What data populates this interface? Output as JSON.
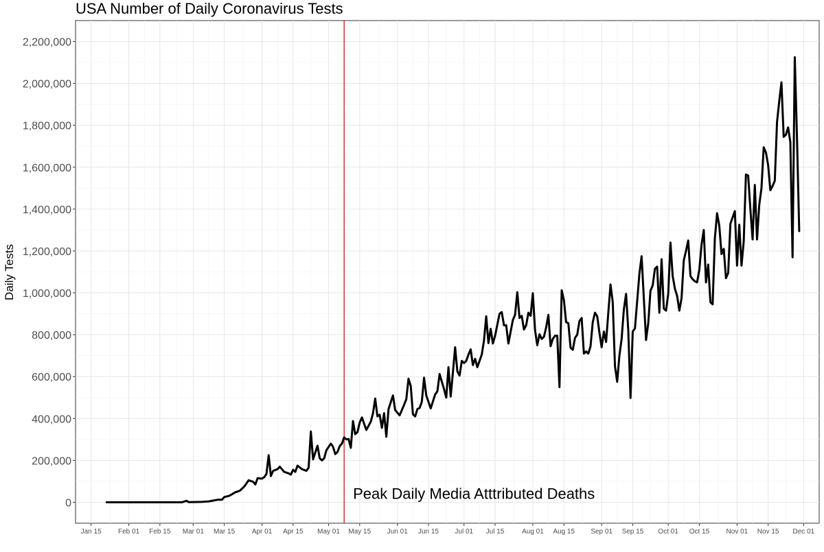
{
  "chart_data": {
    "type": "line",
    "title": "USA Number of Daily Coronavirus Tests",
    "xlabel": "",
    "ylabel": "Daily Tests",
    "xlim": [
      "2020-01-08",
      "2020-12-08"
    ],
    "ylim": [
      -100000,
      2300000
    ],
    "y_ticks": [
      0,
      200000,
      400000,
      600000,
      800000,
      1000000,
      1200000,
      1400000,
      1600000,
      1800000,
      2000000,
      2200000
    ],
    "y_tick_labels": [
      "0",
      "200,000",
      "400,000",
      "600,000",
      "800,000",
      "1,000,000",
      "1,200,000",
      "1,400,000",
      "1,600,000",
      "1,800,000",
      "2,000,000",
      "2,200,000"
    ],
    "x_ticks": [
      "2020-01-15",
      "2020-02-01",
      "2020-02-15",
      "2020-03-01",
      "2020-03-15",
      "2020-04-01",
      "2020-04-15",
      "2020-05-01",
      "2020-05-15",
      "2020-06-01",
      "2020-06-15",
      "2020-07-01",
      "2020-07-15",
      "2020-08-01",
      "2020-08-15",
      "2020-09-01",
      "2020-09-15",
      "2020-10-01",
      "2020-10-15",
      "2020-11-01",
      "2020-11-15",
      "2020-12-01"
    ],
    "x_tick_labels": [
      "Jan 15",
      "Feb 01",
      "Feb 15",
      "Mar 01",
      "Mar 15",
      "Apr 01",
      "Apr 15",
      "May 01",
      "May 15",
      "Jun 01",
      "Jun 15",
      "Jul 01",
      "Jul 15",
      "Aug 01",
      "Aug 15",
      "Sep 01",
      "Sep 15",
      "Oct 01",
      "Oct 15",
      "Nov 01",
      "Nov 15",
      "Dec 01"
    ],
    "grid": true,
    "series": [
      {
        "color": "#000000",
        "points": [
          [
            "2020-01-22",
            0
          ],
          [
            "2020-02-01",
            0
          ],
          [
            "2020-02-15",
            0
          ],
          [
            "2020-02-25",
            0
          ],
          [
            "2020-02-27",
            7000
          ],
          [
            "2020-02-28",
            500
          ],
          [
            "2020-03-02",
            1000
          ],
          [
            "2020-03-05",
            2000
          ],
          [
            "2020-03-08",
            4000
          ],
          [
            "2020-03-10",
            8000
          ],
          [
            "2020-03-12",
            12000
          ],
          [
            "2020-03-14",
            12000
          ],
          [
            "2020-03-15",
            25000
          ],
          [
            "2020-03-17",
            30000
          ],
          [
            "2020-03-18",
            35000
          ],
          [
            "2020-03-20",
            48000
          ],
          [
            "2020-03-22",
            55000
          ],
          [
            "2020-03-24",
            75000
          ],
          [
            "2020-03-26",
            105000
          ],
          [
            "2020-03-28",
            98000
          ],
          [
            "2020-03-29",
            85000
          ],
          [
            "2020-03-30",
            115000
          ],
          [
            "2020-04-01",
            113000
          ],
          [
            "2020-04-02",
            120000
          ],
          [
            "2020-04-03",
            135000
          ],
          [
            "2020-04-04",
            225000
          ],
          [
            "2020-04-05",
            125000
          ],
          [
            "2020-04-06",
            150000
          ],
          [
            "2020-04-08",
            158000
          ],
          [
            "2020-04-09",
            170000
          ],
          [
            "2020-04-11",
            145000
          ],
          [
            "2020-04-13",
            138000
          ],
          [
            "2020-04-14",
            132000
          ],
          [
            "2020-04-15",
            155000
          ],
          [
            "2020-04-16",
            145000
          ],
          [
            "2020-04-17",
            175000
          ],
          [
            "2020-04-19",
            158000
          ],
          [
            "2020-04-21",
            150000
          ],
          [
            "2020-04-22",
            165000
          ],
          [
            "2020-04-23",
            338000
          ],
          [
            "2020-04-24",
            205000
          ],
          [
            "2020-04-26",
            270000
          ],
          [
            "2020-04-27",
            210000
          ],
          [
            "2020-04-28",
            200000
          ],
          [
            "2020-04-29",
            210000
          ],
          [
            "2020-04-30",
            248000
          ],
          [
            "2020-05-02",
            280000
          ],
          [
            "2020-05-03",
            265000
          ],
          [
            "2020-05-04",
            230000
          ],
          [
            "2020-05-05",
            240000
          ],
          [
            "2020-05-06",
            268000
          ],
          [
            "2020-05-07",
            280000
          ],
          [
            "2020-05-08",
            310000
          ],
          [
            "2020-05-09",
            300000
          ],
          [
            "2020-05-10",
            302000
          ],
          [
            "2020-05-11",
            260000
          ],
          [
            "2020-05-12",
            388000
          ],
          [
            "2020-05-13",
            325000
          ],
          [
            "2020-05-14",
            335000
          ],
          [
            "2020-05-15",
            380000
          ],
          [
            "2020-05-16",
            405000
          ],
          [
            "2020-05-18",
            345000
          ],
          [
            "2020-05-20",
            385000
          ],
          [
            "2020-05-21",
            425000
          ],
          [
            "2020-05-22",
            495000
          ],
          [
            "2020-05-23",
            410000
          ],
          [
            "2020-05-24",
            418000
          ],
          [
            "2020-05-25",
            355000
          ],
          [
            "2020-05-26",
            425000
          ],
          [
            "2020-05-27",
            313000
          ],
          [
            "2020-05-28",
            445000
          ],
          [
            "2020-05-30",
            510000
          ],
          [
            "2020-05-31",
            440000
          ],
          [
            "2020-06-02",
            415000
          ],
          [
            "2020-06-04",
            465000
          ],
          [
            "2020-06-05",
            492000
          ],
          [
            "2020-06-06",
            590000
          ],
          [
            "2020-06-07",
            555000
          ],
          [
            "2020-06-08",
            420000
          ],
          [
            "2020-06-09",
            410000
          ],
          [
            "2020-06-10",
            445000
          ],
          [
            "2020-06-11",
            450000
          ],
          [
            "2020-06-12",
            480000
          ],
          [
            "2020-06-13",
            595000
          ],
          [
            "2020-06-14",
            510000
          ],
          [
            "2020-06-16",
            448000
          ],
          [
            "2020-06-18",
            515000
          ],
          [
            "2020-06-19",
            530000
          ],
          [
            "2020-06-20",
            612000
          ],
          [
            "2020-06-22",
            540000
          ],
          [
            "2020-06-23",
            500000
          ],
          [
            "2020-06-24",
            645000
          ],
          [
            "2020-06-25",
            505000
          ],
          [
            "2020-06-26",
            620000
          ],
          [
            "2020-06-27",
            740000
          ],
          [
            "2020-06-28",
            625000
          ],
          [
            "2020-06-29",
            605000
          ],
          [
            "2020-06-30",
            675000
          ],
          [
            "2020-07-01",
            665000
          ],
          [
            "2020-07-02",
            675000
          ],
          [
            "2020-07-03",
            705000
          ],
          [
            "2020-07-04",
            730000
          ],
          [
            "2020-07-05",
            655000
          ],
          [
            "2020-07-06",
            685000
          ],
          [
            "2020-07-07",
            645000
          ],
          [
            "2020-07-08",
            675000
          ],
          [
            "2020-07-09",
            705000
          ],
          [
            "2020-07-10",
            772000
          ],
          [
            "2020-07-11",
            888000
          ],
          [
            "2020-07-12",
            760000
          ],
          [
            "2020-07-13",
            828000
          ],
          [
            "2020-07-14",
            758000
          ],
          [
            "2020-07-15",
            795000
          ],
          [
            "2020-07-17",
            900000
          ],
          [
            "2020-07-18",
            908000
          ],
          [
            "2020-07-19",
            845000
          ],
          [
            "2020-07-20",
            845000
          ],
          [
            "2020-07-21",
            758000
          ],
          [
            "2020-07-23",
            870000
          ],
          [
            "2020-07-24",
            895000
          ],
          [
            "2020-07-25",
            1003000
          ],
          [
            "2020-07-26",
            880000
          ],
          [
            "2020-07-27",
            890000
          ],
          [
            "2020-07-28",
            825000
          ],
          [
            "2020-07-29",
            845000
          ],
          [
            "2020-07-30",
            905000
          ],
          [
            "2020-07-31",
            890000
          ],
          [
            "2020-08-01",
            998000
          ],
          [
            "2020-08-02",
            822000
          ],
          [
            "2020-08-03",
            750000
          ],
          [
            "2020-08-04",
            802000
          ],
          [
            "2020-08-05",
            780000
          ],
          [
            "2020-08-06",
            790000
          ],
          [
            "2020-08-07",
            835000
          ],
          [
            "2020-08-08",
            895000
          ],
          [
            "2020-08-09",
            745000
          ],
          [
            "2020-08-10",
            780000
          ],
          [
            "2020-08-11",
            795000
          ],
          [
            "2020-08-12",
            795000
          ],
          [
            "2020-08-13",
            550000
          ],
          [
            "2020-08-14",
            1012000
          ],
          [
            "2020-08-15",
            965000
          ],
          [
            "2020-08-16",
            860000
          ],
          [
            "2020-08-17",
            855000
          ],
          [
            "2020-08-18",
            738000
          ],
          [
            "2020-08-19",
            728000
          ],
          [
            "2020-08-20",
            785000
          ],
          [
            "2020-08-21",
            800000
          ],
          [
            "2020-08-22",
            865000
          ],
          [
            "2020-08-23",
            880000
          ],
          [
            "2020-08-24",
            710000
          ],
          [
            "2020-08-25",
            720000
          ],
          [
            "2020-08-26",
            710000
          ],
          [
            "2020-08-27",
            745000
          ],
          [
            "2020-08-28",
            860000
          ],
          [
            "2020-08-29",
            905000
          ],
          [
            "2020-08-30",
            888000
          ],
          [
            "2020-08-31",
            810000
          ],
          [
            "2020-09-01",
            740000
          ],
          [
            "2020-09-02",
            815000
          ],
          [
            "2020-09-03",
            765000
          ],
          [
            "2020-09-04",
            905000
          ],
          [
            "2020-09-05",
            1040000
          ],
          [
            "2020-09-06",
            955000
          ],
          [
            "2020-09-07",
            650000
          ],
          [
            "2020-09-08",
            575000
          ],
          [
            "2020-09-09",
            700000
          ],
          [
            "2020-09-10",
            780000
          ],
          [
            "2020-09-11",
            920000
          ],
          [
            "2020-09-12",
            995000
          ],
          [
            "2020-09-13",
            820000
          ],
          [
            "2020-09-14",
            498000
          ],
          [
            "2020-09-15",
            815000
          ],
          [
            "2020-09-16",
            830000
          ],
          [
            "2020-09-17",
            960000
          ],
          [
            "2020-09-18",
            1090000
          ],
          [
            "2020-09-19",
            1175000
          ],
          [
            "2020-09-20",
            975000
          ],
          [
            "2020-09-21",
            775000
          ],
          [
            "2020-09-22",
            855000
          ],
          [
            "2020-09-23",
            1010000
          ],
          [
            "2020-09-24",
            1035000
          ],
          [
            "2020-09-25",
            1115000
          ],
          [
            "2020-09-26",
            1125000
          ],
          [
            "2020-09-27",
            905000
          ],
          [
            "2020-09-28",
            1160000
          ],
          [
            "2020-09-29",
            925000
          ],
          [
            "2020-09-30",
            915000
          ],
          [
            "2020-10-01",
            995000
          ],
          [
            "2020-10-02",
            1240000
          ],
          [
            "2020-10-03",
            1080000
          ],
          [
            "2020-10-04",
            1020000
          ],
          [
            "2020-10-05",
            985000
          ],
          [
            "2020-10-06",
            915000
          ],
          [
            "2020-10-07",
            975000
          ],
          [
            "2020-10-08",
            1155000
          ],
          [
            "2020-10-09",
            1200000
          ],
          [
            "2020-10-10",
            1250000
          ],
          [
            "2020-10-11",
            1080000
          ],
          [
            "2020-10-12",
            1065000
          ],
          [
            "2020-10-13",
            1055000
          ],
          [
            "2020-10-14",
            1050000
          ],
          [
            "2020-10-15",
            1110000
          ],
          [
            "2020-10-16",
            1230000
          ],
          [
            "2020-10-17",
            1300000
          ],
          [
            "2020-10-18",
            1050000
          ],
          [
            "2020-10-19",
            1135000
          ],
          [
            "2020-10-20",
            955000
          ],
          [
            "2020-10-21",
            945000
          ],
          [
            "2020-10-22",
            1260000
          ],
          [
            "2020-10-23",
            1380000
          ],
          [
            "2020-10-24",
            1320000
          ],
          [
            "2020-10-25",
            1185000
          ],
          [
            "2020-10-26",
            1210000
          ],
          [
            "2020-10-27",
            1070000
          ],
          [
            "2020-10-28",
            1095000
          ],
          [
            "2020-10-29",
            1330000
          ],
          [
            "2020-10-30",
            1360000
          ],
          [
            "2020-10-31",
            1390000
          ],
          [
            "2020-11-01",
            1130000
          ],
          [
            "2020-11-02",
            1325000
          ],
          [
            "2020-11-03",
            1130000
          ],
          [
            "2020-11-04",
            1245000
          ],
          [
            "2020-11-05",
            1565000
          ],
          [
            "2020-11-06",
            1560000
          ],
          [
            "2020-11-07",
            1400000
          ],
          [
            "2020-11-08",
            1255000
          ],
          [
            "2020-11-09",
            1515000
          ],
          [
            "2020-11-10",
            1255000
          ],
          [
            "2020-11-11",
            1420000
          ],
          [
            "2020-11-12",
            1500000
          ],
          [
            "2020-11-13",
            1695000
          ],
          [
            "2020-11-14",
            1670000
          ],
          [
            "2020-11-15",
            1610000
          ],
          [
            "2020-11-16",
            1490000
          ],
          [
            "2020-11-17",
            1510000
          ],
          [
            "2020-11-18",
            1535000
          ],
          [
            "2020-11-19",
            1815000
          ],
          [
            "2020-11-20",
            1915000
          ],
          [
            "2020-11-21",
            2005000
          ],
          [
            "2020-11-22",
            1745000
          ],
          [
            "2020-11-23",
            1755000
          ],
          [
            "2020-11-24",
            1790000
          ],
          [
            "2020-11-25",
            1720000
          ],
          [
            "2020-11-26",
            1170000
          ],
          [
            "2020-11-27",
            2125000
          ],
          [
            "2020-11-28",
            1740000
          ],
          [
            "2020-11-29",
            1295000
          ]
        ]
      }
    ],
    "reference_line": {
      "x": "2020-05-08",
      "color": "#cc0000"
    },
    "annotation": {
      "text": "Peak Daily Media Atttributed Deaths",
      "x": "2020-05-12",
      "y": 20000
    }
  }
}
